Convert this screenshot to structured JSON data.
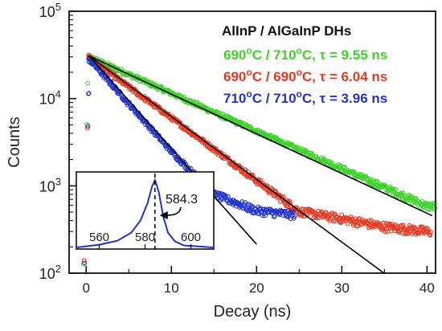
{
  "chart_data": {
    "type": "scatter",
    "title": "",
    "xlabel": "Decay (ns)",
    "ylabel": "Counts",
    "xlim": [
      -2,
      41
    ],
    "ylim": [
      100,
      100000
    ],
    "yscale": "log",
    "x_ticks": [
      0,
      10,
      20,
      30,
      40
    ],
    "y_ticks": [
      {
        "mantissa": "10",
        "exponent": "2",
        "value": 100
      },
      {
        "mantissa": "10",
        "exponent": "3",
        "value": 1000
      },
      {
        "mantissa": "10",
        "exponent": "4",
        "value": 10000
      },
      {
        "mantissa": "10",
        "exponent": "5",
        "value": 100000
      }
    ],
    "grid": false,
    "legend_title": "AlInP / AlGaInP DHs",
    "legend_position": "top-right",
    "fit_color": "#000000",
    "series": [
      {
        "name": "690°C / 710°C, τ = 9.55 ns",
        "name_parts": {
          "t1": "690",
          "t2": "710",
          "tau": "9.55"
        },
        "color": "#3fd12b",
        "peak_x": 0.3,
        "peak_y": 31000,
        "tau_ns": 9.55,
        "x_end": 41.0,
        "points": [
          [
            0,
            31000
          ],
          [
            5,
            18900
          ],
          [
            10,
            11500
          ],
          [
            15,
            6950
          ],
          [
            20,
            4240
          ],
          [
            25,
            2580
          ],
          [
            30,
            1570
          ],
          [
            35,
            956
          ],
          [
            40,
            583
          ]
        ]
      },
      {
        "name": "690°C / 690°C, τ = 6.04 ns",
        "name_parts": {
          "t1": "690",
          "t2": "690",
          "tau": "6.04"
        },
        "color": "#e8391f",
        "peak_x": 0.3,
        "peak_y": 31000,
        "tau_ns": 6.04,
        "x_end": 40.5,
        "points": [
          [
            0,
            31000
          ],
          [
            5,
            13600
          ],
          [
            10,
            6000
          ],
          [
            15,
            2630
          ],
          [
            20,
            1150
          ],
          [
            25,
            510
          ],
          [
            30,
            420
          ],
          [
            35,
            340
          ],
          [
            40,
            300
          ]
        ]
      },
      {
        "name": "710°C / 710°C, τ = 3.96 ns",
        "name_parts": {
          "t1": "710",
          "t2": "710",
          "tau": "3.96"
        },
        "color": "#2233cc",
        "peak_x": 0.3,
        "peak_y": 31000,
        "tau_ns": 3.96,
        "x_end": 24.5,
        "points": [
          [
            0,
            31000
          ],
          [
            5,
            8700
          ],
          [
            10,
            2480
          ],
          [
            15,
            800
          ],
          [
            20,
            520
          ],
          [
            24,
            470
          ]
        ]
      }
    ],
    "inset": {
      "type": "line",
      "xlim": [
        550,
        610
      ],
      "x_ticks": [
        560,
        580,
        600
      ],
      "color": "#2233cc",
      "peak_marker_color": "#000000",
      "peak_x": 584.3,
      "annotation": "584.3",
      "curve": [
        [
          550,
          0.0
        ],
        [
          560,
          0.04
        ],
        [
          568,
          0.1
        ],
        [
          574,
          0.22
        ],
        [
          578,
          0.4
        ],
        [
          581,
          0.65
        ],
        [
          583,
          0.9
        ],
        [
          584.3,
          1.0
        ],
        [
          586,
          0.82
        ],
        [
          588,
          0.45
        ],
        [
          590,
          0.22
        ],
        [
          593,
          0.09
        ],
        [
          597,
          0.03
        ],
        [
          610,
          0.0
        ]
      ]
    }
  }
}
